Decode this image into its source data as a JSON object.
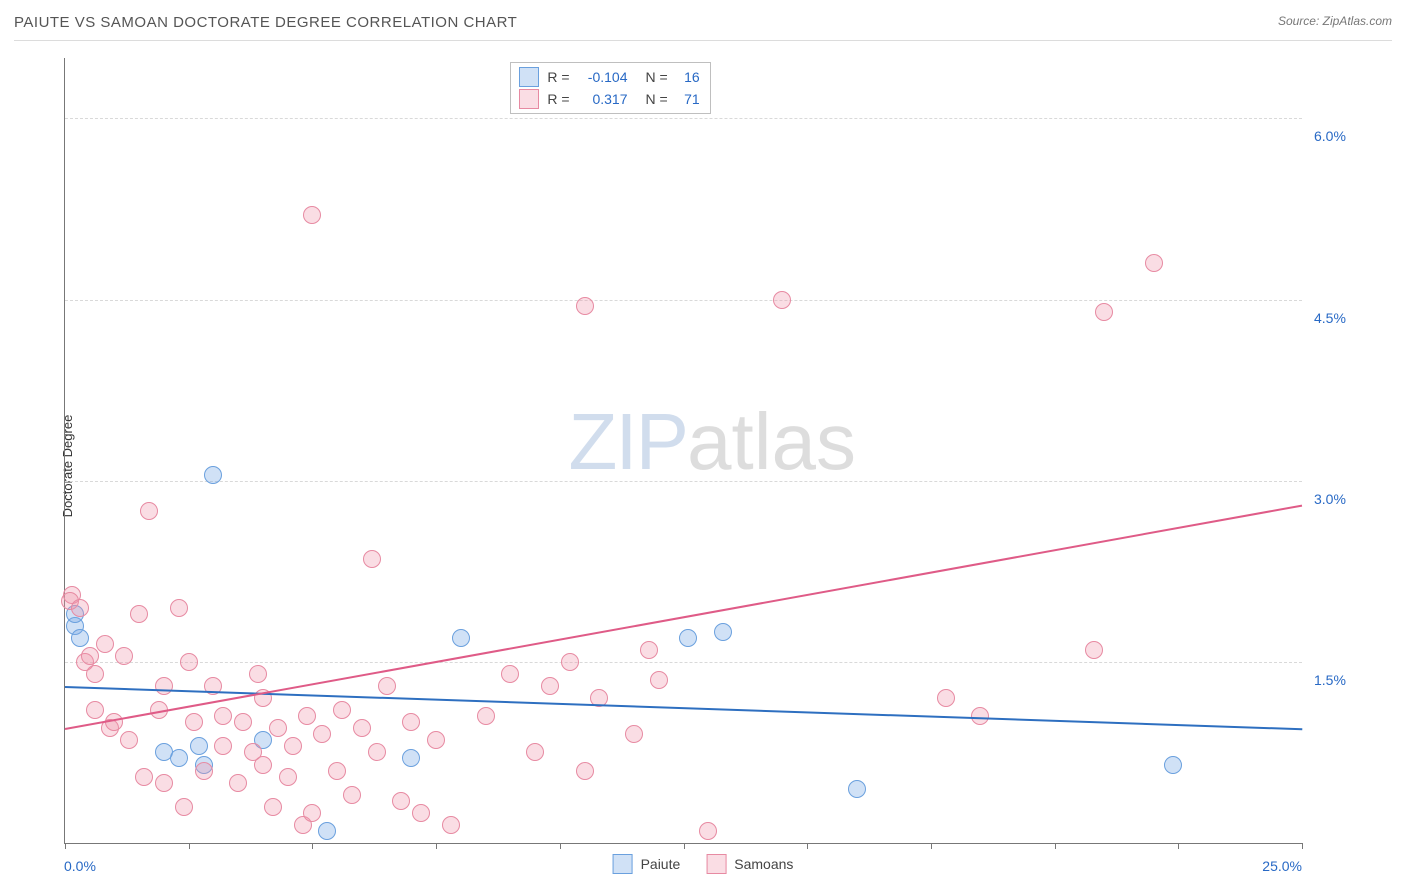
{
  "header": {
    "title": "PAIUTE VS SAMOAN DOCTORATE DEGREE CORRELATION CHART",
    "source_label": "Source: ",
    "source_name": "ZipAtlas.com"
  },
  "ylabel": "Doctorate Degree",
  "watermark": {
    "part1": "ZIP",
    "part2": "atlas"
  },
  "chart": {
    "type": "scatter",
    "xlim": [
      0,
      25
    ],
    "ylim": [
      0,
      6.5
    ],
    "x_tick_labels": {
      "left": "0.0%",
      "right": "25.0%"
    },
    "y_grid": [
      {
        "v": 1.5,
        "label": "1.5%"
      },
      {
        "v": 3.0,
        "label": "3.0%"
      },
      {
        "v": 4.5,
        "label": "4.5%"
      },
      {
        "v": 6.0,
        "label": "6.0%"
      }
    ],
    "x_ticks": [
      0,
      2.5,
      5.0,
      7.5,
      10.0,
      12.5,
      15.0,
      17.5,
      20.0,
      22.5,
      25.0
    ],
    "background_color": "#ffffff",
    "grid_color": "#d9d9d9",
    "axis_color": "#777777",
    "label_color": "#2869c5",
    "marker_radius": 9,
    "marker_border_width": 1.5,
    "line_width": 2,
    "series": [
      {
        "name": "Paiute",
        "fill": "rgba(120,170,230,0.35)",
        "stroke": "#6aa0de",
        "line_color": "#2e6fc0",
        "R": "-0.104",
        "N": "16",
        "trend": {
          "x1": 0,
          "y1": 1.3,
          "x2": 25,
          "y2": 0.95
        },
        "points": [
          [
            0.2,
            1.8
          ],
          [
            0.2,
            1.9
          ],
          [
            0.3,
            1.7
          ],
          [
            2.0,
            0.75
          ],
          [
            2.3,
            0.7
          ],
          [
            2.7,
            0.8
          ],
          [
            2.8,
            0.65
          ],
          [
            3.0,
            3.05
          ],
          [
            4.0,
            0.85
          ],
          [
            5.3,
            0.1
          ],
          [
            7.0,
            0.7
          ],
          [
            8.0,
            1.7
          ],
          [
            12.6,
            1.7
          ],
          [
            13.3,
            1.75
          ],
          [
            16.0,
            0.45
          ],
          [
            22.4,
            0.65
          ]
        ]
      },
      {
        "name": "Samoans",
        "fill": "rgba(240,150,170,0.32)",
        "stroke": "#e78aa2",
        "line_color": "#df5b87",
        "R": "0.317",
        "N": "71",
        "trend": {
          "x1": 0,
          "y1": 0.95,
          "x2": 25,
          "y2": 2.8
        },
        "points": [
          [
            0.15,
            2.05
          ],
          [
            0.1,
            2.0
          ],
          [
            0.3,
            1.95
          ],
          [
            0.4,
            1.5
          ],
          [
            0.5,
            1.55
          ],
          [
            0.6,
            1.1
          ],
          [
            0.6,
            1.4
          ],
          [
            0.8,
            1.65
          ],
          [
            0.9,
            0.95
          ],
          [
            1.0,
            1.0
          ],
          [
            1.2,
            1.55
          ],
          [
            1.3,
            0.85
          ],
          [
            1.5,
            1.9
          ],
          [
            1.6,
            0.55
          ],
          [
            1.7,
            2.75
          ],
          [
            1.9,
            1.1
          ],
          [
            2.0,
            0.5
          ],
          [
            2.0,
            1.3
          ],
          [
            2.3,
            1.95
          ],
          [
            2.4,
            0.3
          ],
          [
            2.5,
            1.5
          ],
          [
            2.6,
            1.0
          ],
          [
            2.8,
            0.6
          ],
          [
            3.0,
            1.3
          ],
          [
            3.2,
            0.8
          ],
          [
            3.2,
            1.05
          ],
          [
            3.5,
            0.5
          ],
          [
            3.6,
            1.0
          ],
          [
            3.8,
            0.75
          ],
          [
            3.9,
            1.4
          ],
          [
            4.0,
            0.65
          ],
          [
            4.0,
            1.2
          ],
          [
            4.2,
            0.3
          ],
          [
            4.3,
            0.95
          ],
          [
            4.5,
            0.55
          ],
          [
            4.6,
            0.8
          ],
          [
            4.8,
            0.15
          ],
          [
            4.9,
            1.05
          ],
          [
            5.0,
            5.2
          ],
          [
            5.0,
            0.25
          ],
          [
            5.2,
            0.9
          ],
          [
            5.5,
            0.6
          ],
          [
            5.6,
            1.1
          ],
          [
            5.8,
            0.4
          ],
          [
            6.0,
            0.95
          ],
          [
            6.2,
            2.35
          ],
          [
            6.3,
            0.75
          ],
          [
            6.5,
            1.3
          ],
          [
            6.8,
            0.35
          ],
          [
            7.0,
            1.0
          ],
          [
            7.2,
            0.25
          ],
          [
            7.5,
            0.85
          ],
          [
            7.8,
            0.15
          ],
          [
            8.5,
            1.05
          ],
          [
            9.0,
            1.4
          ],
          [
            9.5,
            0.75
          ],
          [
            9.8,
            1.3
          ],
          [
            10.2,
            1.5
          ],
          [
            10.5,
            4.45
          ],
          [
            10.5,
            0.6
          ],
          [
            10.8,
            1.2
          ],
          [
            11.5,
            0.9
          ],
          [
            12.0,
            1.35
          ],
          [
            13.0,
            0.1
          ],
          [
            14.5,
            4.5
          ],
          [
            17.8,
            1.2
          ],
          [
            18.5,
            1.05
          ],
          [
            20.8,
            1.6
          ],
          [
            21.0,
            4.4
          ],
          [
            22.0,
            4.8
          ],
          [
            11.8,
            1.6
          ]
        ]
      }
    ]
  },
  "legends": {
    "top": {
      "R_label": "R =",
      "N_label": "N ="
    }
  }
}
